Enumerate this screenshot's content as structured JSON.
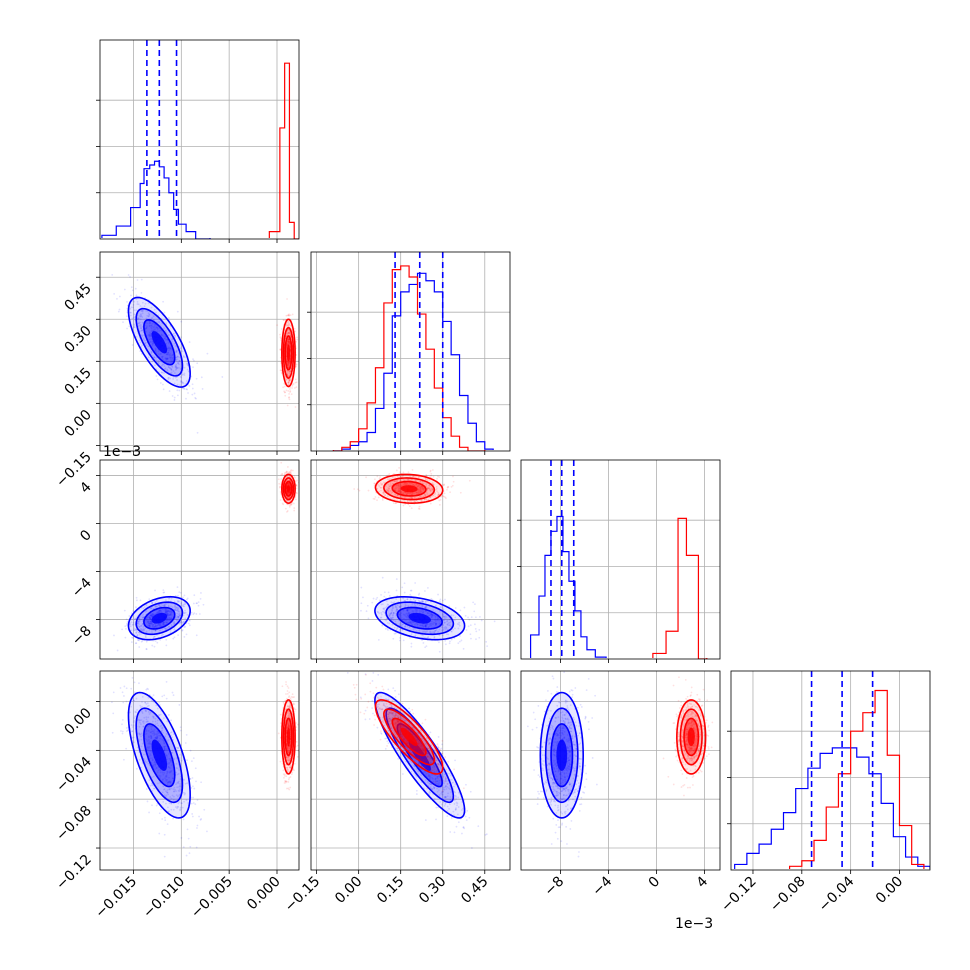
{
  "chart_data": {
    "type": "corner",
    "grid": true,
    "colors": {
      "series_a": "#0000ff",
      "series_b": "#ff0000"
    },
    "series": [
      {
        "color": "#0000ff",
        "means": [
          -0.0123,
          0.218,
          -0.0079,
          -0.044
        ],
        "cov": [
          [
            2.6e-06,
            -9e-05,
            5e-07,
            -2.6e-05
          ],
          [
            -9e-05,
            0.0064,
            -2.5e-05,
            -0.0018
          ],
          [
            5e-07,
            -2.5e-05,
            8e-07,
            0.0
          ],
          [
            -2.6e-05,
            -0.0018,
            0.0,
            0.00066
          ]
        ]
      },
      {
        "color": "#ff0000",
        "means": [
          0.0012,
          0.18,
          0.0029,
          -0.029
        ],
        "cov": [
          [
            1.2e-07,
            0.0,
            0.0,
            0.0
          ],
          [
            0.0,
            0.0036,
            -3.5e-06,
            -0.00075
          ],
          [
            0.0,
            -3.5e-06,
            3.6e-07,
            0.0
          ],
          [
            0.0,
            -0.00075,
            0.0,
            0.00023
          ]
        ]
      }
    ],
    "quantile_lines": [
      [
        -0.0136,
        -0.0123,
        -0.0105
      ],
      [
        0.13,
        0.218,
        0.3
      ],
      [
        -0.0088,
        -0.0079,
        -0.0069
      ],
      [
        -0.072,
        -0.047,
        -0.022
      ]
    ],
    "hist_series_a": [
      {
        "edges": [
          -0.0183,
          -0.0168,
          -0.0153,
          -0.0143,
          -0.0139,
          -0.0133,
          -0.0128,
          -0.0123,
          -0.0118,
          -0.0113,
          -0.0108,
          -0.0103,
          -0.0095,
          -0.0085,
          -0.007
        ],
        "counts": [
          0.02,
          0.07,
          0.17,
          0.3,
          0.38,
          0.4,
          0.42,
          0.39,
          0.33,
          0.25,
          0.16,
          0.08,
          0.04,
          0.0
        ]
      },
      {
        "edges": [
          -0.09,
          -0.06,
          -0.03,
          0.0,
          0.03,
          0.06,
          0.09,
          0.12,
          0.15,
          0.18,
          0.21,
          0.24,
          0.27,
          0.3,
          0.33,
          0.36,
          0.39,
          0.42,
          0.45,
          0.48
        ],
        "counts": [
          0.0,
          0.01,
          0.03,
          0.05,
          0.1,
          0.23,
          0.42,
          0.73,
          0.86,
          0.9,
          0.96,
          0.92,
          0.86,
          0.7,
          0.52,
          0.3,
          0.15,
          0.05,
          0.01
        ]
      },
      {
        "edges": [
          -0.0105,
          -0.0098,
          -0.0093,
          -0.0088,
          -0.0083,
          -0.0078,
          -0.0073,
          -0.0068,
          -0.0063,
          -0.0058,
          -0.0051,
          -0.0042
        ],
        "counts": [
          0.13,
          0.34,
          0.56,
          0.69,
          0.77,
          0.58,
          0.42,
          0.26,
          0.12,
          0.05,
          0.01
        ]
      },
      {
        "edges": [
          -0.135,
          -0.125,
          -0.115,
          -0.105,
          -0.095,
          -0.085,
          -0.075,
          -0.065,
          -0.055,
          -0.045,
          -0.035,
          -0.025,
          -0.015,
          -0.005,
          0.005,
          0.015,
          0.025
        ],
        "counts": [
          0.03,
          0.09,
          0.14,
          0.22,
          0.31,
          0.44,
          0.55,
          0.63,
          0.66,
          0.66,
          0.61,
          0.52,
          0.36,
          0.18,
          0.07,
          0.02
        ]
      }
    ],
    "hist_series_b": [
      {
        "edges": [
          -0.0008,
          0.0003,
          0.0008,
          0.0013,
          0.0018,
          0.003
        ],
        "counts": [
          0.04,
          0.6,
          0.95,
          0.09,
          0.0
        ]
      },
      {
        "edges": [
          -0.09,
          -0.06,
          -0.03,
          0.0,
          0.03,
          0.06,
          0.09,
          0.12,
          0.15,
          0.18,
          0.21,
          0.24,
          0.27,
          0.3,
          0.33,
          0.36,
          0.39,
          0.42,
          0.45
        ],
        "counts": [
          0.0,
          0.02,
          0.05,
          0.12,
          0.26,
          0.45,
          0.8,
          0.98,
          1.0,
          0.94,
          0.74,
          0.55,
          0.34,
          0.18,
          0.08,
          0.02,
          0.0,
          0.0
        ]
      },
      {
        "edges": [
          -0.0003,
          0.0008,
          0.0018,
          0.0025,
          0.0035,
          0.0042
        ],
        "counts": [
          0.03,
          0.15,
          0.76,
          0.56,
          0.0
        ]
      },
      {
        "edges": [
          -0.09,
          -0.08,
          -0.07,
          -0.06,
          -0.05,
          -0.04,
          -0.03,
          -0.02,
          -0.01,
          0.0,
          0.01,
          0.02
        ],
        "counts": [
          0.02,
          0.05,
          0.16,
          0.34,
          0.52,
          0.75,
          0.85,
          0.97,
          0.62,
          0.24,
          0.03
        ]
      }
    ],
    "axes": [
      {
        "range": [
          -0.0185,
          0.0023
        ],
        "ticks": [
          -0.015,
          -0.01,
          -0.005,
          0.0
        ],
        "tick_labels": [
          "−0.015",
          "−0.010",
          "−0.005",
          "0.000"
        ]
      },
      {
        "range": [
          -0.17,
          0.54
        ],
        "ticks": [
          -0.15,
          0.0,
          0.15,
          0.3,
          0.45
        ],
        "tick_labels": [
          "−0.15",
          "0.00",
          "0.15",
          "0.30",
          "0.45"
        ]
      },
      {
        "range": [
          -0.0113,
          0.0053
        ],
        "ticks": [
          -0.008,
          -0.004,
          0.0,
          0.004
        ],
        "tick_labels": [
          "−8",
          "−4",
          "0",
          "4"
        ],
        "offset_label": "1e−3"
      },
      {
        "range": [
          -0.138,
          0.025
        ],
        "ticks": [
          -0.12,
          -0.08,
          -0.04,
          0.0
        ],
        "tick_labels": [
          "−0.12",
          "−0.08",
          "−0.04",
          "0.00"
        ]
      }
    ]
  }
}
